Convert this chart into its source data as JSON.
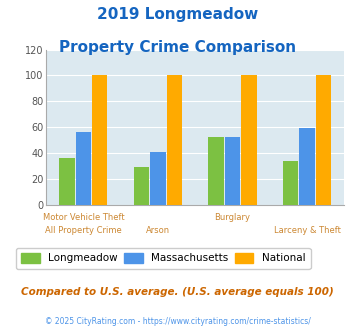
{
  "title_line1": "2019 Longmeadow",
  "title_line2": "Property Crime Comparison",
  "groups": [
    {
      "longmeadow": 36,
      "massachusetts": 56,
      "national": 100
    },
    {
      "longmeadow": 29,
      "massachusetts": 41,
      "national": 100
    },
    {
      "longmeadow": 52,
      "massachusetts": 52,
      "national": 100
    },
    {
      "longmeadow": 34,
      "massachusetts": 59,
      "national": 100
    }
  ],
  "color_longmeadow": "#7cc142",
  "color_massachusetts": "#4d94e8",
  "color_national": "#ffaa00",
  "background_color": "#dce9f0",
  "title_color": "#1565c0",
  "xlabel_color": "#cc8833",
  "ylim": [
    0,
    120
  ],
  "yticks": [
    0,
    20,
    40,
    60,
    80,
    100,
    120
  ],
  "note_text": "Compared to U.S. average. (U.S. average equals 100)",
  "copyright_text": "© 2025 CityRating.com - https://www.cityrating.com/crime-statistics/",
  "legend_labels": [
    "Longmeadow",
    "Massachusetts",
    "National"
  ],
  "bar_width": 0.22,
  "x_label_top": [
    "Motor Vehicle Theft",
    "",
    "Burglary",
    ""
  ],
  "x_label_bot": [
    "All Property Crime",
    "Arson",
    "",
    "Larceny & Theft"
  ]
}
